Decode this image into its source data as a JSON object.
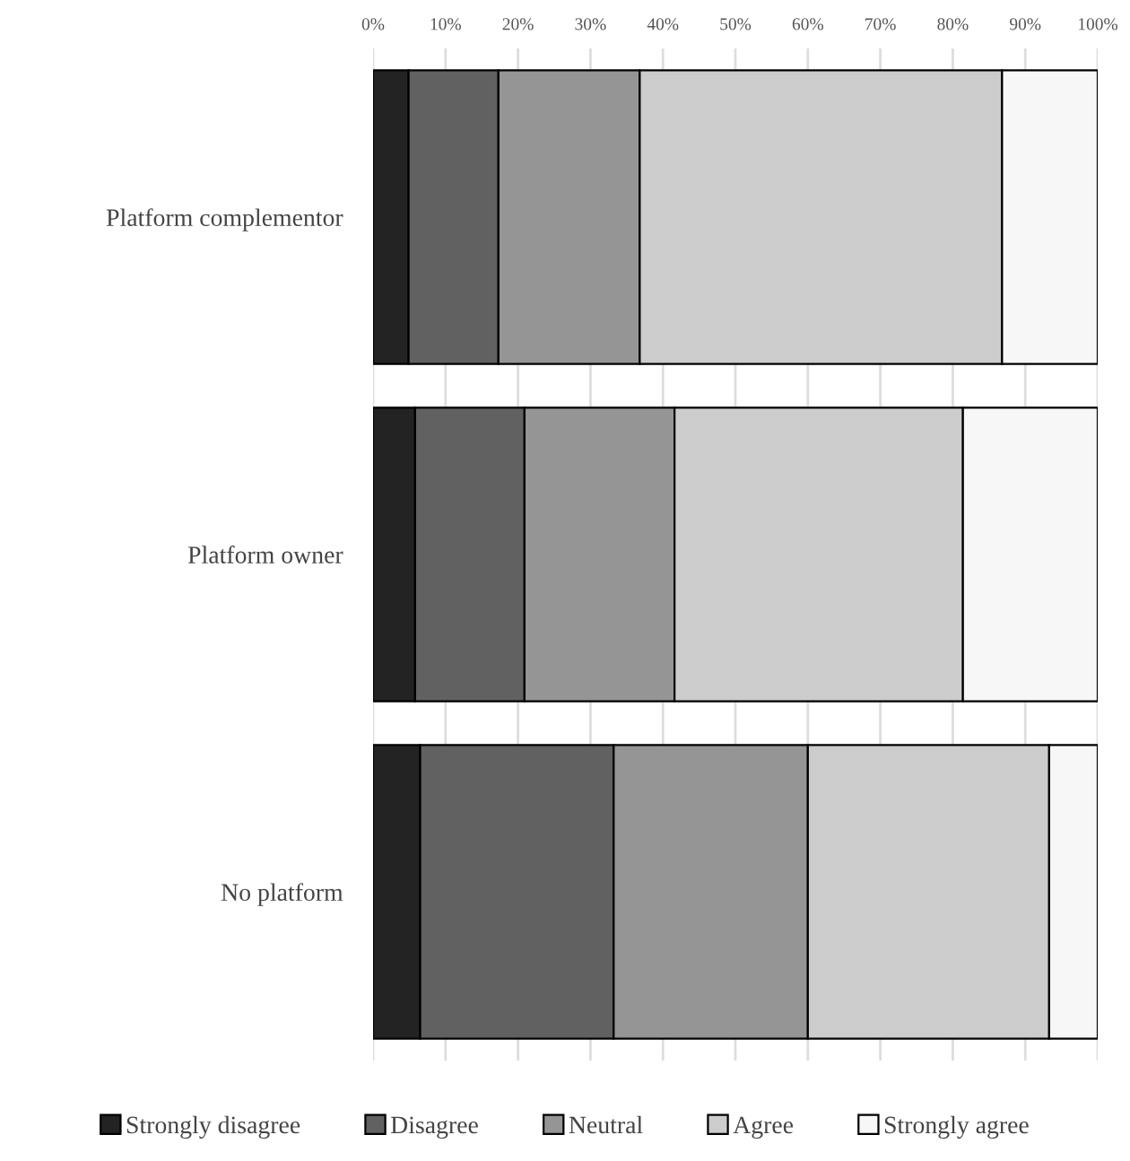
{
  "chart_data": {
    "type": "bar",
    "orientation": "horizontal",
    "stacked": true,
    "categories": [
      "Platform complementor",
      "Platform owner",
      "No platform"
    ],
    "series": [
      {
        "name": "Strongly disagree",
        "color": "#232323",
        "values": [
          4.9,
          5.8,
          6.5
        ]
      },
      {
        "name": "Disagree",
        "color": "#616161",
        "values": [
          12.4,
          15.1,
          26.7
        ]
      },
      {
        "name": "Neutral",
        "color": "#959595",
        "values": [
          19.5,
          20.7,
          26.8
        ]
      },
      {
        "name": "Agree",
        "color": "#cccccc",
        "values": [
          50.0,
          39.8,
          33.3
        ]
      },
      {
        "name": "Strongly agree",
        "color": "#f7f7f7",
        "values": [
          13.2,
          18.6,
          6.7
        ]
      }
    ],
    "xlim": [
      0,
      100
    ],
    "xticks": [
      {
        "value": 0,
        "label": "0%"
      },
      {
        "value": 10,
        "label": "10%"
      },
      {
        "value": 20,
        "label": "20%"
      },
      {
        "value": 30,
        "label": "30%"
      },
      {
        "value": 40,
        "label": "40%"
      },
      {
        "value": 50,
        "label": "50%"
      },
      {
        "value": 60,
        "label": "60%"
      },
      {
        "value": 70,
        "label": "70%"
      },
      {
        "value": 80,
        "label": "80%"
      },
      {
        "value": 90,
        "label": "90%"
      },
      {
        "value": 100,
        "label": "100%"
      }
    ],
    "grid": "x",
    "legend": "bottom"
  }
}
